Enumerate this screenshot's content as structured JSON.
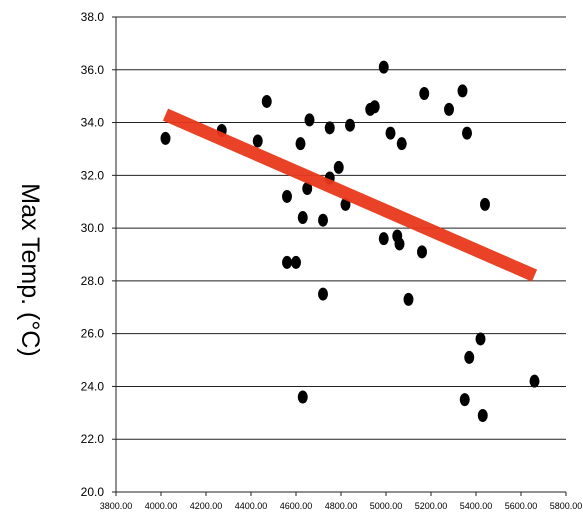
{
  "chart_data": {
    "type": "scatter",
    "ylabel": "Max Temp. (°C)",
    "xlabel": "",
    "xlim": [
      3800,
      5800
    ],
    "ylim": [
      20,
      38
    ],
    "x_ticks": [
      "3800.00",
      "4000.00",
      "4200.00",
      "4400.00",
      "4600.00",
      "4800.00",
      "5000.00",
      "5200.00",
      "5400.00",
      "5600.00",
      "5800.00"
    ],
    "y_ticks": [
      "20.0",
      "22.0",
      "24.0",
      "26.0",
      "28.0",
      "30.0",
      "32.0",
      "34.0",
      "36.0",
      "38.0"
    ],
    "grid": "horizontal",
    "marker_color": "#000000",
    "trendline_color": "#e8381c",
    "trendline": {
      "x": [
        4020,
        5660
      ],
      "y": [
        34.3,
        28.2
      ]
    },
    "points": [
      {
        "x": 4020,
        "y": 33.4
      },
      {
        "x": 4270,
        "y": 33.7
      },
      {
        "x": 4430,
        "y": 33.3
      },
      {
        "x": 4470,
        "y": 34.8
      },
      {
        "x": 4560,
        "y": 31.2
      },
      {
        "x": 4560,
        "y": 28.7
      },
      {
        "x": 4600,
        "y": 28.7
      },
      {
        "x": 4620,
        "y": 33.2
      },
      {
        "x": 4630,
        "y": 30.4
      },
      {
        "x": 4630,
        "y": 23.6
      },
      {
        "x": 4650,
        "y": 31.5
      },
      {
        "x": 4660,
        "y": 34.1
      },
      {
        "x": 4720,
        "y": 27.5
      },
      {
        "x": 4720,
        "y": 30.3
      },
      {
        "x": 4750,
        "y": 33.8
      },
      {
        "x": 4750,
        "y": 31.9
      },
      {
        "x": 4790,
        "y": 32.3
      },
      {
        "x": 4820,
        "y": 30.9
      },
      {
        "x": 4840,
        "y": 33.9
      },
      {
        "x": 4930,
        "y": 34.5
      },
      {
        "x": 4950,
        "y": 34.6
      },
      {
        "x": 4990,
        "y": 36.1
      },
      {
        "x": 4990,
        "y": 29.6
      },
      {
        "x": 5020,
        "y": 33.6
      },
      {
        "x": 5050,
        "y": 29.7
      },
      {
        "x": 5060,
        "y": 29.4
      },
      {
        "x": 5070,
        "y": 33.2
      },
      {
        "x": 5100,
        "y": 27.3
      },
      {
        "x": 5160,
        "y": 29.1
      },
      {
        "x": 5170,
        "y": 35.1
      },
      {
        "x": 5280,
        "y": 34.5
      },
      {
        "x": 5340,
        "y": 35.2
      },
      {
        "x": 5350,
        "y": 23.5
      },
      {
        "x": 5360,
        "y": 33.6
      },
      {
        "x": 5370,
        "y": 25.1
      },
      {
        "x": 5420,
        "y": 25.8
      },
      {
        "x": 5430,
        "y": 22.9
      },
      {
        "x": 5440,
        "y": 30.9
      },
      {
        "x": 5660,
        "y": 24.2
      }
    ]
  }
}
